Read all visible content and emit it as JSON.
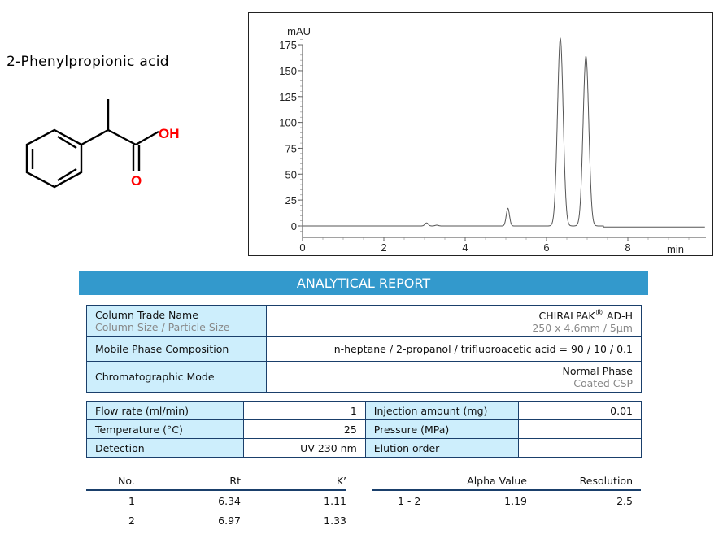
{
  "compound_name": "2-Phenylpropionic acid",
  "structure_labels": {
    "hydroxyl": "OH",
    "carbonyl_oxygen": "O",
    "heteroatom_color": "#ff0000"
  },
  "chart_data": {
    "type": "line",
    "ylabel": "mAU",
    "xlabel": "min",
    "xlim": [
      0,
      9.9
    ],
    "ylim": [
      -10,
      185
    ],
    "xticks": [
      "0",
      "2",
      "4",
      "6",
      "8"
    ],
    "yticks": [
      "0",
      "25",
      "50",
      "75",
      "100",
      "125",
      "150",
      "175"
    ],
    "grid": false,
    "line_color": "#555555",
    "peaks": [
      {
        "rt": 3.05,
        "height": 3
      },
      {
        "rt": 3.3,
        "height": 0.8
      },
      {
        "rt": 5.05,
        "height": 17
      },
      {
        "rt": 6.34,
        "height": 181
      },
      {
        "rt": 6.97,
        "height": 164
      }
    ]
  },
  "report": {
    "title": "ANALYTICAL REPORT",
    "column_trade_name_label": "Column Trade Name",
    "column_size_label": "Column Size / Particle Size",
    "column_trade_name": "CHIRALPAK",
    "column_trade_name_mark": "®",
    "column_trade_name_suffix": " AD-H",
    "column_size": "250 x 4.6mm / 5µm",
    "mobile_phase_label": "Mobile Phase Composition",
    "mobile_phase": "n-heptane / 2-propanol / trifluoroacetic acid = 90 / 10 / 0.1",
    "mode_label": "Chromatographic Mode",
    "mode": "Normal Phase",
    "mode_sub": "Coated CSP",
    "params": [
      {
        "label": "Flow rate (ml/min)",
        "value": "1",
        "label2": "Injection amount (mg)",
        "value2": "0.01"
      },
      {
        "label": "Temperature (°C)",
        "value": "25",
        "label2": "Pressure (MPa)",
        "value2": ""
      },
      {
        "label": "Detection",
        "value": "UV 230 nm",
        "label2": "Elution order",
        "value2": ""
      }
    ],
    "results_headers": {
      "no": "No.",
      "rt": "Rt",
      "k": "K’",
      "pair": "",
      "alpha": "Alpha Value",
      "resolution": "Resolution"
    },
    "results": [
      {
        "no": "1",
        "rt": "6.34",
        "k": "1.11"
      },
      {
        "no": "2",
        "rt": "6.97",
        "k": "1.33"
      }
    ],
    "pairs": [
      {
        "pair": "1 - 2",
        "alpha": "1.19",
        "resolution": "2.5"
      }
    ]
  }
}
